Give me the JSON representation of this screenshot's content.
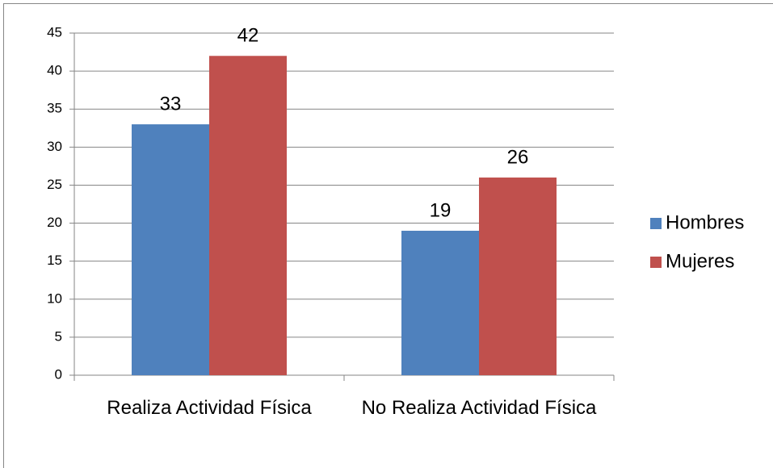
{
  "chart_data": {
    "type": "bar",
    "categories": [
      "Realiza Actividad Física",
      "No Realiza Actividad Física"
    ],
    "series": [
      {
        "name": "Hombres",
        "color": "#4f81bd",
        "values": [
          33,
          19
        ]
      },
      {
        "name": "Mujeres",
        "color": "#c0504d",
        "values": [
          42,
          26
        ]
      }
    ],
    "ylim": [
      0,
      45
    ],
    "yticks": [
      0,
      5,
      10,
      15,
      20,
      25,
      30,
      35,
      40,
      45
    ],
    "grid": true,
    "legend": "right"
  }
}
